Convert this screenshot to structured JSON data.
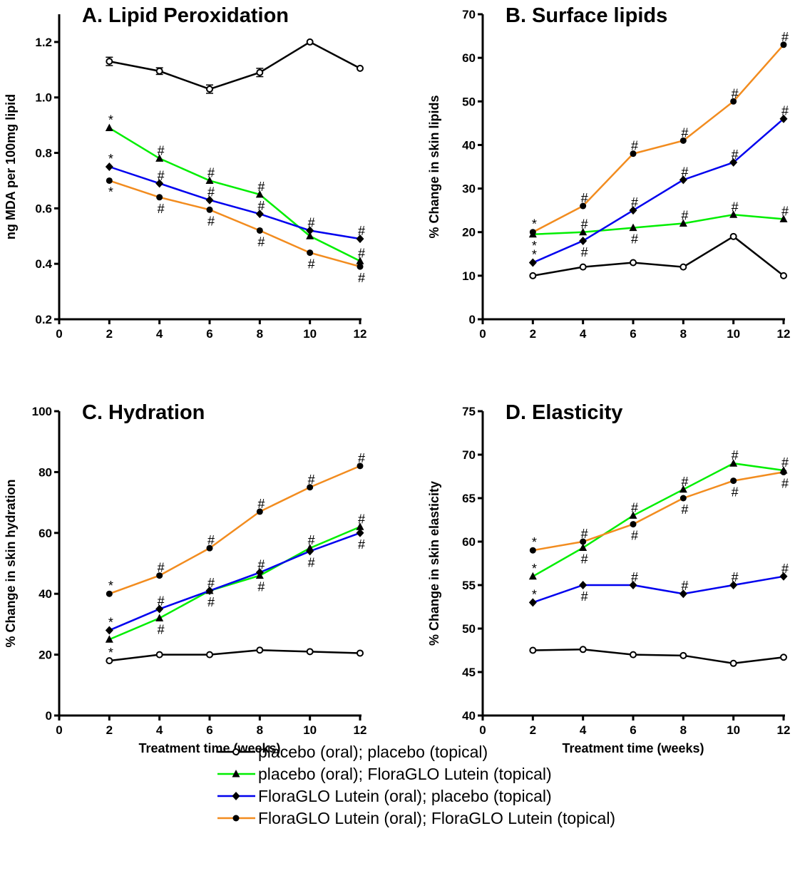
{
  "legend": [
    {
      "name": "placebo (oral); placebo (topical)",
      "color": "#000000",
      "marker": "open-circle"
    },
    {
      "name": "placebo (oral); FloraGLO Lutein (topical)",
      "color": "#00ee00",
      "marker": "triangle"
    },
    {
      "name": "FloraGLO Lutein (oral); placebo (topical)",
      "color": "#0000ee",
      "marker": "diamond"
    },
    {
      "name": "FloraGLO Lutein (oral); FloraGLO Lutein (topical)",
      "color": "#f28c1f",
      "marker": "filled-circle"
    }
  ],
  "chart_data": [
    {
      "type": "line",
      "title": "A.  Lipid Peroxidation",
      "xlabel": "",
      "ylabel": "ng MDA per 100mg lipid",
      "xlim": [
        0,
        12
      ],
      "ylim": [
        0.2,
        1.3
      ],
      "xticks": [
        "0",
        "2",
        "4",
        "6",
        "8",
        "10",
        "12"
      ],
      "yticks": [
        "0.2",
        "0.4",
        "0.6",
        "0.8",
        "1.0",
        "1.2"
      ],
      "x": [
        2,
        4,
        6,
        8,
        10,
        12
      ],
      "series": [
        {
          "values": [
            1.13,
            1.095,
            1.03,
            1.09,
            1.2,
            1.105
          ],
          "error": [
            0.015,
            0.012,
            0.015,
            0.015,
            0,
            0
          ]
        },
        {
          "values": [
            0.89,
            0.78,
            0.7,
            0.65,
            0.5,
            0.41
          ]
        },
        {
          "values": [
            0.75,
            0.69,
            0.63,
            0.58,
            0.52,
            0.49
          ]
        },
        {
          "values": [
            0.7,
            0.64,
            0.595,
            0.52,
            0.44,
            0.39
          ]
        }
      ],
      "annotations": [
        {
          "x": 2,
          "y": 0.89,
          "text": "*",
          "pos": "above"
        },
        {
          "x": 2,
          "y": 0.75,
          "text": "*",
          "pos": "above"
        },
        {
          "x": 2,
          "y": 0.7,
          "text": "*",
          "pos": "below"
        },
        {
          "x": 4,
          "y": 0.78,
          "text": "#",
          "pos": "above"
        },
        {
          "x": 4,
          "y": 0.69,
          "text": "#",
          "pos": "above"
        },
        {
          "x": 4,
          "y": 0.64,
          "text": "#",
          "pos": "below"
        },
        {
          "x": 6,
          "y": 0.7,
          "text": "#",
          "pos": "above"
        },
        {
          "x": 6,
          "y": 0.63,
          "text": "#",
          "pos": "above"
        },
        {
          "x": 6,
          "y": 0.595,
          "text": "#",
          "pos": "below"
        },
        {
          "x": 8,
          "y": 0.65,
          "text": "#",
          "pos": "above"
        },
        {
          "x": 8,
          "y": 0.58,
          "text": "#",
          "pos": "above"
        },
        {
          "x": 8,
          "y": 0.52,
          "text": "#",
          "pos": "below"
        },
        {
          "x": 10,
          "y": 0.52,
          "text": "#",
          "pos": "above"
        },
        {
          "x": 10,
          "y": 0.44,
          "text": "#",
          "pos": "below"
        },
        {
          "x": 12,
          "y": 0.49,
          "text": "#",
          "pos": "above"
        },
        {
          "x": 12,
          "y": 0.41,
          "text": "#",
          "pos": "above"
        },
        {
          "x": 12,
          "y": 0.39,
          "text": "#",
          "pos": "below"
        }
      ]
    },
    {
      "type": "line",
      "title": "B.  Surface lipids",
      "xlabel": "",
      "ylabel": "% Change in skin lipids",
      "xlim": [
        0,
        12
      ],
      "ylim": [
        0,
        70
      ],
      "xticks": [
        "0",
        "2",
        "4",
        "6",
        "8",
        "10",
        "12"
      ],
      "yticks": [
        "0",
        "10",
        "20",
        "30",
        "40",
        "50",
        "60",
        "70"
      ],
      "x": [
        2,
        4,
        6,
        8,
        10,
        12
      ],
      "series": [
        {
          "values": [
            10,
            12,
            13,
            12,
            19,
            10
          ]
        },
        {
          "values": [
            19.5,
            20,
            21,
            22,
            24,
            23
          ]
        },
        {
          "values": [
            13,
            18,
            25,
            32,
            36,
            46
          ]
        },
        {
          "values": [
            20,
            26,
            38,
            41,
            50,
            63
          ]
        }
      ],
      "annotations": [
        {
          "x": 2,
          "y": 20,
          "text": "*",
          "pos": "above"
        },
        {
          "x": 2,
          "y": 19.5,
          "text": "*",
          "pos": "below"
        },
        {
          "x": 2,
          "y": 13,
          "text": "*",
          "pos": "above"
        },
        {
          "x": 4,
          "y": 26,
          "text": "#",
          "pos": "above"
        },
        {
          "x": 4,
          "y": 20,
          "text": "#",
          "pos": "above"
        },
        {
          "x": 4,
          "y": 18,
          "text": "#",
          "pos": "below"
        },
        {
          "x": 6,
          "y": 38,
          "text": "#",
          "pos": "above"
        },
        {
          "x": 6,
          "y": 25,
          "text": "#",
          "pos": "above"
        },
        {
          "x": 6,
          "y": 21,
          "text": "#",
          "pos": "below"
        },
        {
          "x": 8,
          "y": 41,
          "text": "#",
          "pos": "above"
        },
        {
          "x": 8,
          "y": 32,
          "text": "#",
          "pos": "above"
        },
        {
          "x": 8,
          "y": 22,
          "text": "#",
          "pos": "above"
        },
        {
          "x": 10,
          "y": 50,
          "text": "#",
          "pos": "above"
        },
        {
          "x": 10,
          "y": 36,
          "text": "#",
          "pos": "above"
        },
        {
          "x": 10,
          "y": 24,
          "text": "#",
          "pos": "above"
        },
        {
          "x": 12,
          "y": 63,
          "text": "#",
          "pos": "above"
        },
        {
          "x": 12,
          "y": 46,
          "text": "#",
          "pos": "above"
        },
        {
          "x": 12,
          "y": 23,
          "text": "#",
          "pos": "above"
        }
      ]
    },
    {
      "type": "line",
      "title": "C. Hydration",
      "xlabel": "Treatment time (weeks)",
      "ylabel": "% Change in skin hydration",
      "xlim": [
        0,
        12
      ],
      "ylim": [
        0,
        100
      ],
      "xticks": [
        "0",
        "2",
        "4",
        "6",
        "8",
        "10",
        "12"
      ],
      "yticks": [
        "0",
        "20",
        "40",
        "60",
        "80",
        "100"
      ],
      "x": [
        2,
        4,
        6,
        8,
        10,
        12
      ],
      "series": [
        {
          "values": [
            18,
            20,
            20,
            21.5,
            21,
            20.5
          ]
        },
        {
          "values": [
            25,
            32,
            41,
            46,
            55,
            62
          ]
        },
        {
          "values": [
            28,
            35,
            41,
            47,
            54,
            60
          ]
        },
        {
          "values": [
            40,
            46,
            55,
            67,
            75,
            82
          ]
        }
      ],
      "annotations": [
        {
          "x": 2,
          "y": 40,
          "text": "*",
          "pos": "above"
        },
        {
          "x": 2,
          "y": 28,
          "text": "*",
          "pos": "above"
        },
        {
          "x": 2,
          "y": 18,
          "text": "*",
          "pos": "above"
        },
        {
          "x": 4,
          "y": 46,
          "text": "#",
          "pos": "above"
        },
        {
          "x": 4,
          "y": 35,
          "text": "#",
          "pos": "above"
        },
        {
          "x": 4,
          "y": 32,
          "text": "#",
          "pos": "below"
        },
        {
          "x": 6,
          "y": 55,
          "text": "#",
          "pos": "above"
        },
        {
          "x": 6,
          "y": 41,
          "text": "#",
          "pos": "above"
        },
        {
          "x": 6,
          "y": 41,
          "text": "#",
          "pos": "below"
        },
        {
          "x": 8,
          "y": 67,
          "text": "#",
          "pos": "above"
        },
        {
          "x": 8,
          "y": 47,
          "text": "#",
          "pos": "above"
        },
        {
          "x": 8,
          "y": 46,
          "text": "#",
          "pos": "below"
        },
        {
          "x": 10,
          "y": 75,
          "text": "#",
          "pos": "above"
        },
        {
          "x": 10,
          "y": 55,
          "text": "#",
          "pos": "above"
        },
        {
          "x": 10,
          "y": 54,
          "text": "#",
          "pos": "below"
        },
        {
          "x": 12,
          "y": 82,
          "text": "#",
          "pos": "above"
        },
        {
          "x": 12,
          "y": 62,
          "text": "#",
          "pos": "above"
        },
        {
          "x": 12,
          "y": 60,
          "text": "#",
          "pos": "below"
        }
      ]
    },
    {
      "type": "line",
      "title": "D.  Elasticity",
      "xlabel": "Treatment time (weeks)",
      "ylabel": "% Change in skin elasticity",
      "xlim": [
        0,
        12
      ],
      "ylim": [
        40,
        75
      ],
      "xticks": [
        "0",
        "2",
        "4",
        "6",
        "8",
        "10",
        "12"
      ],
      "yticks": [
        "40",
        "45",
        "50",
        "55",
        "60",
        "65",
        "70",
        "75"
      ],
      "x": [
        2,
        4,
        6,
        8,
        10,
        12
      ],
      "series": [
        {
          "values": [
            47.5,
            47.6,
            47,
            46.9,
            46,
            46.7
          ]
        },
        {
          "values": [
            56,
            59.3,
            63,
            66,
            69,
            68.2
          ]
        },
        {
          "values": [
            53,
            55,
            55,
            54,
            55,
            56
          ]
        },
        {
          "values": [
            59,
            60,
            62,
            65,
            67,
            68
          ]
        }
      ],
      "annotations": [
        {
          "x": 2,
          "y": 59,
          "text": "*",
          "pos": "above"
        },
        {
          "x": 2,
          "y": 56,
          "text": "*",
          "pos": "above"
        },
        {
          "x": 2,
          "y": 53,
          "text": "*",
          "pos": "above"
        },
        {
          "x": 4,
          "y": 60,
          "text": "#",
          "pos": "above"
        },
        {
          "x": 4,
          "y": 59.3,
          "text": "#",
          "pos": "below"
        },
        {
          "x": 4,
          "y": 55,
          "text": "#",
          "pos": "below"
        },
        {
          "x": 6,
          "y": 63,
          "text": "#",
          "pos": "above"
        },
        {
          "x": 6,
          "y": 62,
          "text": "#",
          "pos": "below"
        },
        {
          "x": 6,
          "y": 55,
          "text": "#",
          "pos": "above"
        },
        {
          "x": 8,
          "y": 66,
          "text": "#",
          "pos": "above"
        },
        {
          "x": 8,
          "y": 65,
          "text": "#",
          "pos": "below"
        },
        {
          "x": 8,
          "y": 54,
          "text": "#",
          "pos": "above"
        },
        {
          "x": 10,
          "y": 69,
          "text": "#",
          "pos": "above"
        },
        {
          "x": 10,
          "y": 67,
          "text": "#",
          "pos": "below"
        },
        {
          "x": 10,
          "y": 55,
          "text": "#",
          "pos": "above"
        },
        {
          "x": 12,
          "y": 68.2,
          "text": "#",
          "pos": "above"
        },
        {
          "x": 12,
          "y": 68,
          "text": "#",
          "pos": "below"
        },
        {
          "x": 12,
          "y": 56,
          "text": "#",
          "pos": "above"
        }
      ]
    }
  ]
}
